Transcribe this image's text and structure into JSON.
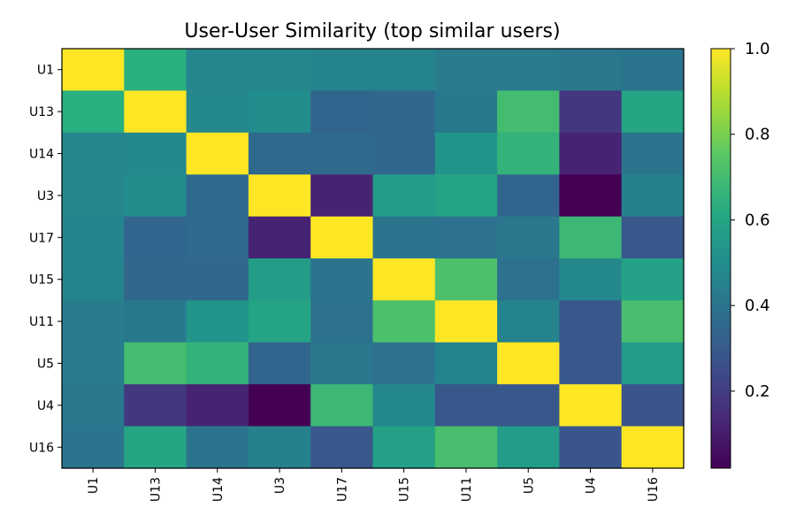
{
  "chart_data": {
    "type": "heatmap",
    "title": "User-User Similarity (top similar users)",
    "xlabel": "",
    "ylabel": "",
    "rows": [
      "U1",
      "U13",
      "U14",
      "U3",
      "U17",
      "U15",
      "U11",
      "U5",
      "U4",
      "U16"
    ],
    "cols": [
      "U1",
      "U13",
      "U14",
      "U3",
      "U17",
      "U15",
      "U11",
      "U5",
      "U4",
      "U16"
    ],
    "values": [
      [
        1.0,
        0.64,
        0.47,
        0.47,
        0.46,
        0.46,
        0.43,
        0.43,
        0.41,
        0.4
      ],
      [
        0.64,
        1.0,
        0.48,
        0.5,
        0.34,
        0.35,
        0.42,
        0.7,
        0.18,
        0.6
      ],
      [
        0.47,
        0.48,
        1.0,
        0.36,
        0.36,
        0.35,
        0.53,
        0.66,
        0.12,
        0.4
      ],
      [
        0.47,
        0.5,
        0.36,
        1.0,
        0.12,
        0.56,
        0.59,
        0.34,
        0.02,
        0.45
      ],
      [
        0.46,
        0.34,
        0.36,
        0.12,
        1.0,
        0.4,
        0.39,
        0.41,
        0.68,
        0.29
      ],
      [
        0.46,
        0.35,
        0.35,
        0.56,
        0.4,
        1.0,
        0.72,
        0.39,
        0.48,
        0.58
      ],
      [
        0.43,
        0.42,
        0.53,
        0.59,
        0.39,
        0.72,
        1.0,
        0.46,
        0.29,
        0.71
      ],
      [
        0.43,
        0.7,
        0.66,
        0.34,
        0.41,
        0.39,
        0.46,
        1.0,
        0.29,
        0.56
      ],
      [
        0.41,
        0.18,
        0.12,
        0.02,
        0.68,
        0.48,
        0.29,
        0.29,
        1.0,
        0.28
      ],
      [
        0.4,
        0.6,
        0.4,
        0.45,
        0.29,
        0.58,
        0.71,
        0.56,
        0.28,
        1.0
      ]
    ],
    "colormap": "viridis",
    "vmin": 0.02,
    "vmax": 1.0,
    "colorbar": {
      "ticks": [
        0.2,
        0.4,
        0.6,
        0.8,
        1.0
      ],
      "tick_labels": [
        "0.2",
        "0.4",
        "0.6",
        "0.8",
        "1.0"
      ]
    },
    "grid": false,
    "x_tick_rotation": "vertical"
  }
}
